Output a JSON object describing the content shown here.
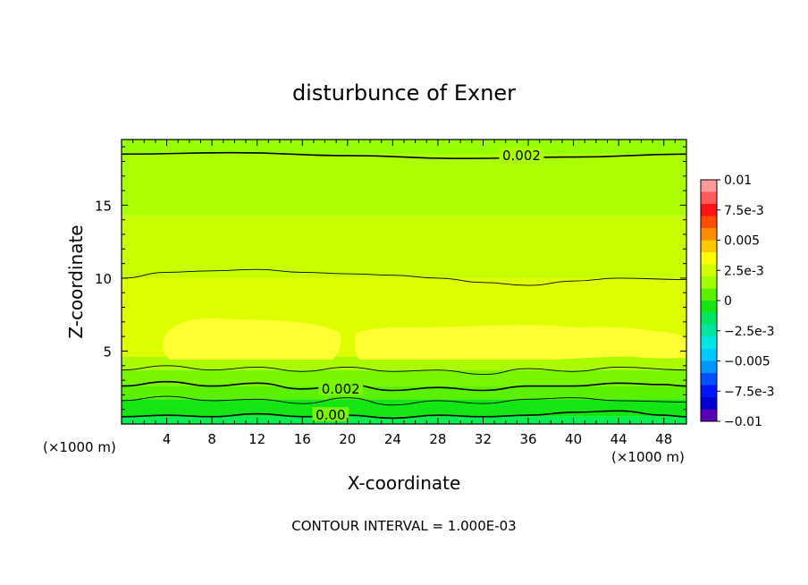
{
  "chart_data": {
    "type": "heatmap",
    "title": "disturbunce of Exner",
    "xlabel": "X-coordinate",
    "ylabel": "Z-coordinate",
    "x_unit": "(×1000 m)",
    "y_unit": "(×1000 m)",
    "xlim": [
      0,
      50
    ],
    "ylim": [
      0,
      19.5
    ],
    "x_ticks": [
      "4",
      "8",
      "12",
      "16",
      "20",
      "24",
      "28",
      "32",
      "36",
      "40",
      "44",
      "48"
    ],
    "y_ticks": [
      "5",
      "10",
      "15"
    ],
    "footer": "CONTOUR INTERVAL = 1.000E-03",
    "contour_labels": [
      "0.002",
      "0.002",
      "0.00"
    ],
    "colorbar": {
      "ticks": [
        "0.01",
        "7.5e-3",
        "0.005",
        "2.5e-3",
        "0",
        "−2.5e-3",
        "−0.005",
        "−7.5e-3",
        "−0.01"
      ],
      "colors": [
        "#ff9a9a",
        "#ff5a5a",
        "#ff1414",
        "#ff4e00",
        "#ff8c00",
        "#ffc800",
        "#ffff00",
        "#d2ff00",
        "#a0ff00",
        "#5af000",
        "#14e614",
        "#00e664",
        "#00e6a0",
        "#00e6e6",
        "#00c8ff",
        "#0096ff",
        "#0050ff",
        "#0014ff",
        "#0000d2",
        "#5a00b4"
      ]
    },
    "field_bands": [
      {
        "z_range": [
          0,
          0.5
        ],
        "color": "#00f050"
      },
      {
        "z_range": [
          0.5,
          1.7
        ],
        "color": "#14e614"
      },
      {
        "z_range": [
          1.7,
          2.6
        ],
        "color": "#5af000"
      },
      {
        "z_range": [
          2.6,
          3.7
        ],
        "color": "#78f500"
      },
      {
        "z_range": [
          3.7,
          4.6
        ],
        "color": "#aafa00"
      },
      {
        "z_range": [
          4.6,
          10.0
        ],
        "color": "#ddff00"
      },
      {
        "z_range": [
          10.0,
          14.3
        ],
        "color": "#c8ff00"
      },
      {
        "z_range": [
          14.3,
          18.5
        ],
        "color": "#aaff00"
      },
      {
        "z_range": [
          18.5,
          19.5
        ],
        "color": "#96ff00"
      }
    ],
    "max_patches_color": "#ffff33",
    "contours": [
      {
        "label": "0.002",
        "width": 1.6,
        "points": [
          [
            0,
            18.5
          ],
          [
            10,
            18.6
          ],
          [
            20,
            18.4
          ],
          [
            30,
            18.2
          ],
          [
            40,
            18.3
          ],
          [
            50,
            18.5
          ]
        ]
      },
      {
        "label": "",
        "width": 0.9,
        "points": [
          [
            0,
            10.0
          ],
          [
            4,
            10.4
          ],
          [
            8,
            10.5
          ],
          [
            12,
            10.6
          ],
          [
            16,
            10.4
          ],
          [
            20,
            10.3
          ],
          [
            24,
            10.2
          ],
          [
            28,
            10.0
          ],
          [
            32,
            9.7
          ],
          [
            36,
            9.5
          ],
          [
            40,
            9.8
          ],
          [
            44,
            10.0
          ],
          [
            50,
            9.9
          ]
        ]
      },
      {
        "label": "",
        "width": 0.9,
        "points": [
          [
            0,
            3.7
          ],
          [
            4,
            4.0
          ],
          [
            8,
            3.7
          ],
          [
            12,
            3.9
          ],
          [
            16,
            3.6
          ],
          [
            20,
            3.9
          ],
          [
            24,
            3.6
          ],
          [
            28,
            3.7
          ],
          [
            32,
            3.4
          ],
          [
            36,
            3.8
          ],
          [
            40,
            3.6
          ],
          [
            44,
            3.9
          ],
          [
            50,
            3.7
          ]
        ]
      },
      {
        "label": "0.002",
        "width": 1.6,
        "points": [
          [
            0,
            2.6
          ],
          [
            4,
            2.9
          ],
          [
            8,
            2.6
          ],
          [
            12,
            2.8
          ],
          [
            16,
            2.4
          ],
          [
            20,
            2.7
          ],
          [
            24,
            2.3
          ],
          [
            28,
            2.5
          ],
          [
            32,
            2.3
          ],
          [
            36,
            2.6
          ],
          [
            40,
            2.6
          ],
          [
            44,
            2.8
          ],
          [
            48,
            2.7
          ],
          [
            50,
            2.6
          ]
        ]
      },
      {
        "label": "",
        "width": 0.9,
        "points": [
          [
            0,
            1.6
          ],
          [
            4,
            1.9
          ],
          [
            8,
            1.6
          ],
          [
            12,
            1.7
          ],
          [
            16,
            1.4
          ],
          [
            20,
            1.8
          ],
          [
            24,
            1.3
          ],
          [
            28,
            1.6
          ],
          [
            32,
            1.4
          ],
          [
            36,
            1.7
          ],
          [
            40,
            1.8
          ],
          [
            44,
            1.6
          ],
          [
            50,
            1.5
          ]
        ]
      },
      {
        "label": "0.00",
        "width": 1.6,
        "points": [
          [
            0,
            0.5
          ],
          [
            4,
            0.6
          ],
          [
            8,
            0.5
          ],
          [
            12,
            0.7
          ],
          [
            16,
            0.5
          ],
          [
            20,
            0.6
          ],
          [
            24,
            0.4
          ],
          [
            28,
            0.6
          ],
          [
            32,
            0.5
          ],
          [
            36,
            0.6
          ],
          [
            40,
            0.8
          ],
          [
            44,
            0.9
          ],
          [
            48,
            0.6
          ],
          [
            50,
            0.5
          ]
        ]
      }
    ]
  }
}
